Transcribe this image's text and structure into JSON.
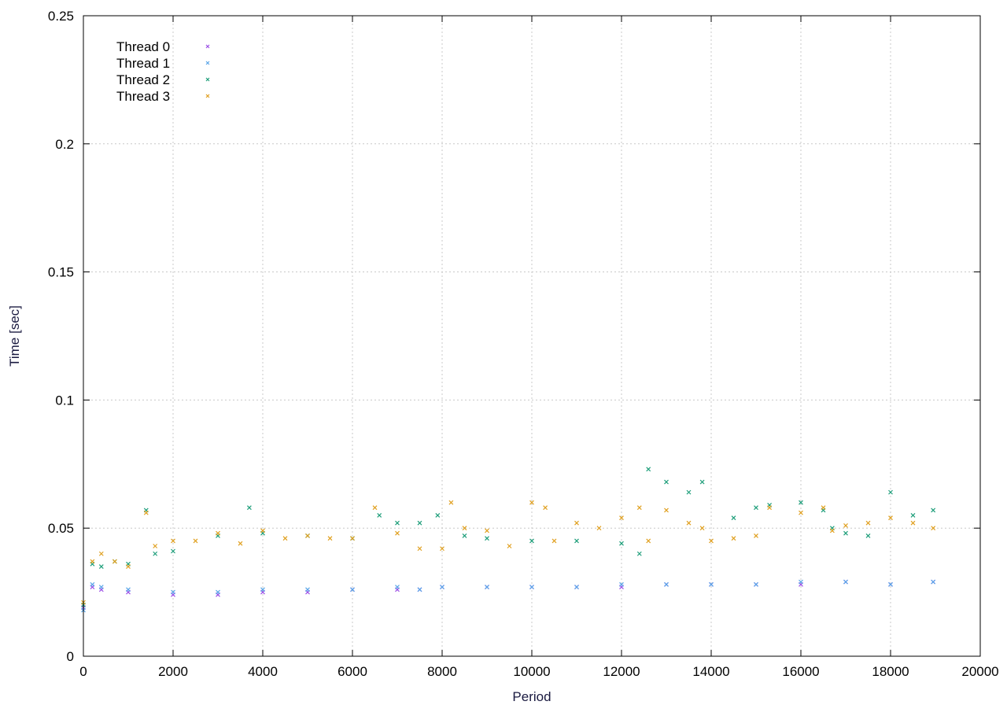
{
  "chart_data": {
    "type": "scatter",
    "title": "",
    "xlabel": "Period",
    "ylabel": "Time [sec]",
    "xlim": [
      0,
      20000
    ],
    "ylim": [
      0,
      0.25
    ],
    "xticks": [
      0,
      2000,
      4000,
      6000,
      8000,
      10000,
      12000,
      14000,
      16000,
      18000,
      20000
    ],
    "xtick_labels": [
      "0",
      "2000",
      "4000",
      "6000",
      "8000",
      "10000",
      "12000",
      "14000",
      "16000",
      "18000",
      "20000"
    ],
    "yticks": [
      0,
      0.05,
      0.1,
      0.15,
      0.2,
      0.25
    ],
    "ytick_labels": [
      "0",
      "0.05",
      "0.1",
      "0.15",
      "0.2",
      "0.25"
    ],
    "grid": true,
    "legend_position": "top-left",
    "marker": "x",
    "series": [
      {
        "name": "Thread 0",
        "color": "#9b4fe6",
        "x": [
          0,
          200,
          400,
          1000,
          2000,
          3000,
          4000,
          5000,
          6000,
          7000,
          7500,
          8000,
          9000,
          10000,
          11000,
          12000,
          13000,
          14000,
          15000,
          16000,
          17000,
          18000,
          18950
        ],
        "y": [
          0.019,
          0.027,
          0.026,
          0.025,
          0.024,
          0.024,
          0.025,
          0.025,
          0.026,
          0.026,
          0.026,
          0.027,
          0.027,
          0.027,
          0.027,
          0.027,
          0.028,
          0.028,
          0.028,
          0.028,
          0.029,
          0.028,
          0.029
        ]
      },
      {
        "name": "Thread 1",
        "color": "#5aa6e8",
        "x": [
          0,
          200,
          400,
          1000,
          2000,
          3000,
          4000,
          5000,
          6000,
          7000,
          7500,
          8000,
          9000,
          10000,
          11000,
          12000,
          13000,
          14000,
          15000,
          16000,
          17000,
          18000,
          18950
        ],
        "y": [
          0.018,
          0.028,
          0.027,
          0.026,
          0.025,
          0.025,
          0.026,
          0.026,
          0.026,
          0.027,
          0.026,
          0.027,
          0.027,
          0.027,
          0.027,
          0.028,
          0.028,
          0.028,
          0.028,
          0.029,
          0.029,
          0.028,
          0.029
        ]
      },
      {
        "name": "Thread 2",
        "color": "#1e9e7a",
        "x": [
          0,
          200,
          400,
          700,
          1000,
          1400,
          1600,
          2000,
          3000,
          3700,
          4000,
          5000,
          6000,
          6600,
          7000,
          7500,
          7900,
          8500,
          9000,
          10000,
          11000,
          12000,
          12400,
          12600,
          13000,
          13500,
          13800,
          14500,
          15000,
          15300,
          16000,
          16500,
          16700,
          17000,
          17500,
          18000,
          18500,
          18950
        ],
        "y": [
          0.02,
          0.036,
          0.035,
          0.037,
          0.036,
          0.057,
          0.04,
          0.041,
          0.047,
          0.058,
          0.048,
          0.047,
          0.046,
          0.055,
          0.052,
          0.052,
          0.055,
          0.047,
          0.046,
          0.045,
          0.045,
          0.044,
          0.04,
          0.073,
          0.068,
          0.064,
          0.068,
          0.054,
          0.058,
          0.059,
          0.06,
          0.057,
          0.05,
          0.048,
          0.047,
          0.064,
          0.055,
          0.057
        ]
      },
      {
        "name": "Thread 3",
        "color": "#e0a020",
        "x": [
          0,
          200,
          400,
          700,
          1000,
          1400,
          1600,
          2000,
          2500,
          3000,
          3500,
          4000,
          4500,
          5000,
          5500,
          6000,
          6500,
          7000,
          7500,
          8000,
          8200,
          8500,
          9000,
          9500,
          10000,
          10300,
          10500,
          11000,
          11500,
          12000,
          12400,
          12600,
          13000,
          13500,
          13800,
          14000,
          14500,
          15000,
          15300,
          16000,
          16500,
          16700,
          17000,
          17500,
          18000,
          18500,
          18950
        ],
        "y": [
          0.021,
          0.037,
          0.04,
          0.037,
          0.035,
          0.056,
          0.043,
          0.045,
          0.045,
          0.048,
          0.044,
          0.049,
          0.046,
          0.047,
          0.046,
          0.046,
          0.058,
          0.048,
          0.042,
          0.042,
          0.06,
          0.05,
          0.049,
          0.043,
          0.06,
          0.058,
          0.045,
          0.052,
          0.05,
          0.054,
          0.058,
          0.045,
          0.057,
          0.052,
          0.05,
          0.045,
          0.046,
          0.047,
          0.058,
          0.056,
          0.058,
          0.049,
          0.051,
          0.052,
          0.054,
          0.052,
          0.05
        ]
      }
    ]
  }
}
